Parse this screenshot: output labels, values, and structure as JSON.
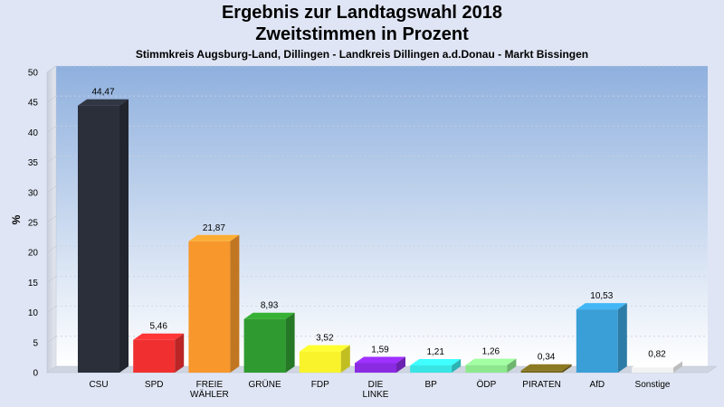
{
  "titles": {
    "line1": "Ergebnis zur Landtagswahl 2018",
    "line2": "Zweitstimmen in Prozent",
    "line3": "Stimmkreis Augsburg-Land, Dillingen - Landkreis Dillingen a.d.Donau - Markt Bissingen"
  },
  "chart_data": {
    "type": "bar",
    "title": "Ergebnis zur Landtagswahl 2018 — Zweitstimmen in Prozent",
    "subtitle": "Stimmkreis Augsburg-Land, Dillingen - Landkreis Dillingen a.d.Donau - Markt Bissingen",
    "xlabel": "",
    "ylabel": "%",
    "ylim": [
      0,
      50
    ],
    "yticks": [
      0,
      5,
      10,
      15,
      20,
      25,
      30,
      35,
      40,
      45,
      50
    ],
    "grid": true,
    "categories": [
      [
        "CSU"
      ],
      [
        "SPD"
      ],
      [
        "FREIE",
        "WÄHLER"
      ],
      [
        "GRÜNE"
      ],
      [
        "FDP"
      ],
      [
        "DIE",
        "LINKE"
      ],
      [
        "BP"
      ],
      [
        "ÖDP"
      ],
      [
        "PIRATEN"
      ],
      [
        "AfD"
      ],
      [
        "Sonstige"
      ]
    ],
    "values": [
      44.47,
      5.46,
      21.87,
      8.93,
      3.52,
      1.59,
      1.21,
      1.26,
      0.34,
      10.53,
      0.82
    ],
    "value_labels": [
      "44,47",
      "5,46",
      "21,87",
      "8,93",
      "3,52",
      "1,59",
      "1,21",
      "1,26",
      "0,34",
      "10,53",
      "0,82"
    ],
    "colors": [
      "#2b2f3a",
      "#f03030",
      "#f7972c",
      "#2f9a2f",
      "#f8f32b",
      "#8a2be2",
      "#38e5e5",
      "#8de88d",
      "#7a6a1e",
      "#3a9fd6",
      "#f2f2f2"
    ]
  }
}
